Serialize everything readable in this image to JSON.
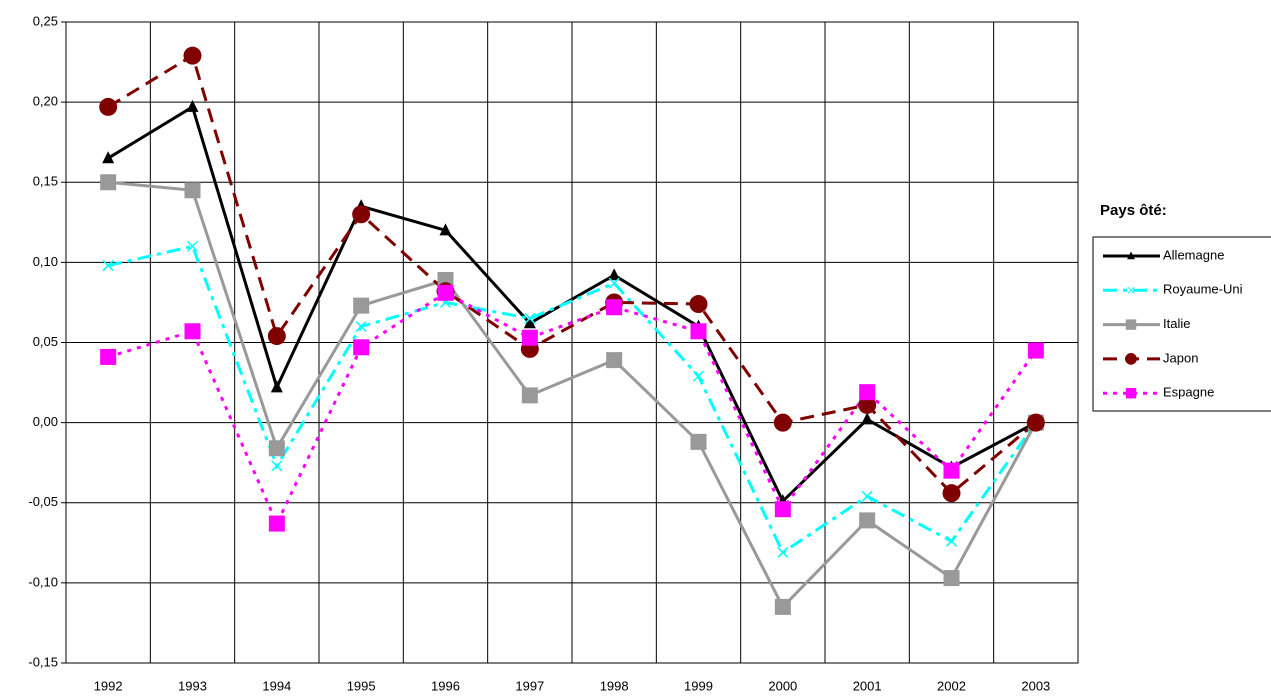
{
  "chart_data": {
    "type": "line",
    "categories": [
      "1992",
      "1993",
      "1994",
      "1995",
      "1996",
      "1997",
      "1998",
      "1999",
      "2000",
      "2001",
      "2002",
      "2003"
    ],
    "series": [
      {
        "name": "Allemagne",
        "color": "#000000",
        "dash": "solid",
        "marker": "triangle",
        "values": [
          0.165,
          0.197,
          0.022,
          0.135,
          0.12,
          0.062,
          0.092,
          0.06,
          -0.049,
          0.002,
          -0.028,
          0.0
        ]
      },
      {
        "name": "Royaume-Uni",
        "color": "#00ffff",
        "dash": "dashdot",
        "marker": "x",
        "values": [
          0.098,
          0.11,
          -0.027,
          0.06,
          0.075,
          0.065,
          0.087,
          0.029,
          -0.081,
          -0.046,
          -0.074,
          0.0
        ]
      },
      {
        "name": "Italie",
        "color": "#999999",
        "dash": "solid",
        "marker": "square",
        "values": [
          0.15,
          0.145,
          -0.016,
          0.073,
          0.089,
          0.017,
          0.039,
          -0.012,
          -0.115,
          -0.061,
          -0.097,
          0.0
        ]
      },
      {
        "name": "Japon",
        "color": "#800000",
        "dash": "dashed",
        "marker": "circle",
        "values": [
          0.197,
          0.229,
          0.054,
          0.13,
          0.082,
          0.046,
          0.075,
          0.074,
          0.0,
          0.011,
          -0.044,
          0.0
        ]
      },
      {
        "name": "Espagne",
        "color": "#ff00ff",
        "dash": "dotted",
        "marker": "square",
        "values": [
          0.041,
          0.057,
          -0.063,
          0.047,
          0.081,
          0.053,
          0.072,
          0.057,
          -0.054,
          0.019,
          -0.03,
          0.045
        ]
      }
    ],
    "ylim": [
      -0.15,
      0.25
    ],
    "yticks": [
      {
        "value": -0.15,
        "label": "-0,15"
      },
      {
        "value": -0.1,
        "label": "-0,10"
      },
      {
        "value": -0.05,
        "label": "-0,05"
      },
      {
        "value": 0,
        "label": "0,00"
      },
      {
        "value": 0.05,
        "label": "0,05"
      },
      {
        "value": 0.1,
        "label": "0,10"
      },
      {
        "value": 0.15,
        "label": "0,15"
      },
      {
        "value": 0.2,
        "label": "0,20"
      },
      {
        "value": 0.25,
        "label": "0,25"
      }
    ],
    "grid": true,
    "legend_title": "Pays ôté:",
    "legend": "right"
  }
}
